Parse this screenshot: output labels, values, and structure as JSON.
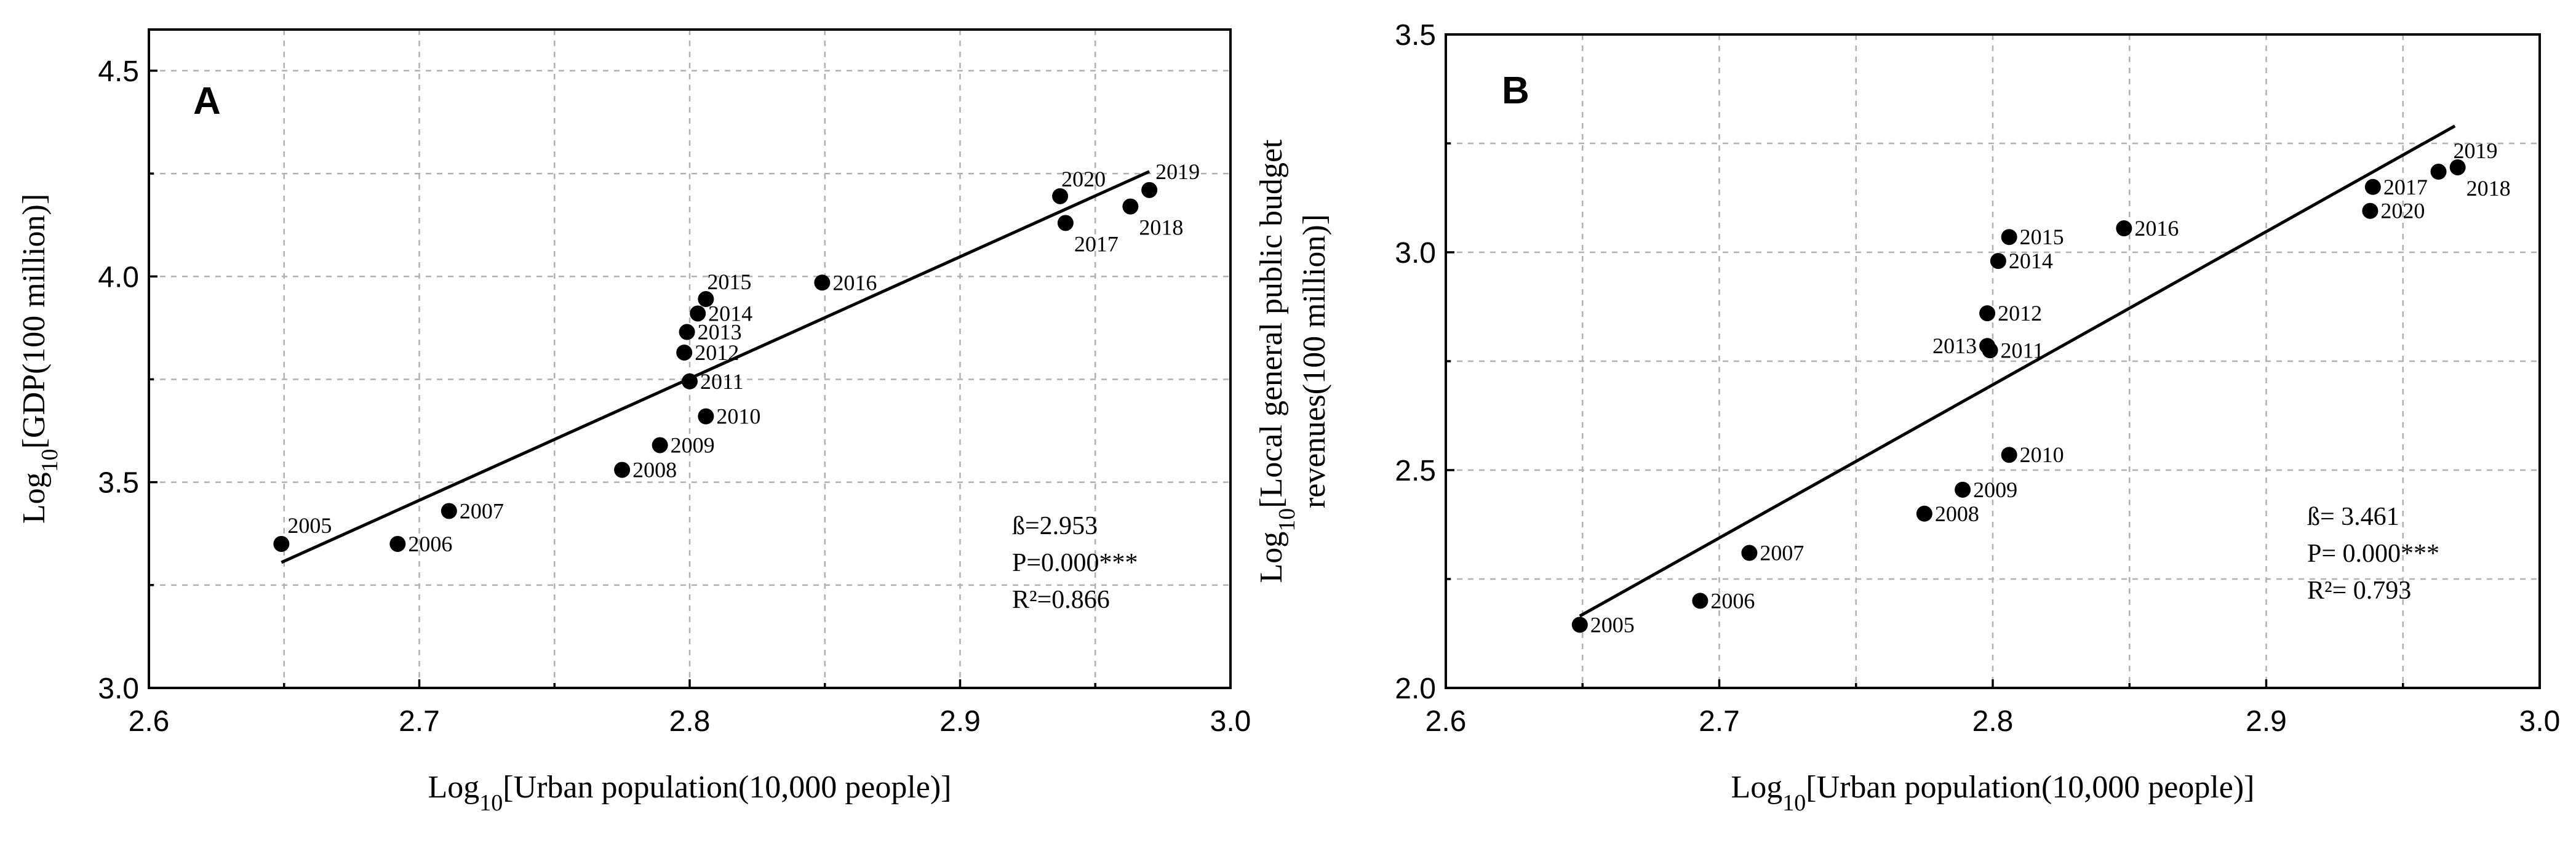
{
  "chart_data": [
    {
      "type": "scatter",
      "panel": "A",
      "xlabel": "Log10[Urban population(10,000 people)]",
      "xlabel_parts": {
        "prefix": "Log",
        "sub": "10",
        "rest": "[Urban population(10,000 people)]"
      },
      "ylabel": "Log10[GDP(100 million)]",
      "ylabel_lines": [
        {
          "prefix": "Log",
          "sub": "10",
          "rest": "[GDP(100 million)]"
        }
      ],
      "xlim": [
        2.6,
        3.0
      ],
      "ylim": [
        3.0,
        4.6
      ],
      "xticks": [
        2.6,
        2.7,
        2.8,
        2.9,
        3.0
      ],
      "xtick_labels": [
        "2.6",
        "2.7",
        "2.8",
        "2.9",
        "3.0"
      ],
      "yticks": [
        3.0,
        3.5,
        4.0,
        4.5
      ],
      "ytick_labels": [
        "3.0",
        "3.5",
        "4.0",
        "4.5"
      ],
      "x_minor_gridlines": [
        2.65,
        2.75,
        2.85,
        2.95
      ],
      "y_minor_gridlines": [
        3.25,
        3.75,
        4.25
      ],
      "grid": true,
      "points": [
        {
          "label": "2005",
          "x": 2.649,
          "y": 3.35,
          "label_pos": "above-right"
        },
        {
          "label": "2006",
          "x": 2.692,
          "y": 3.35,
          "label_pos": "right"
        },
        {
          "label": "2007",
          "x": 2.711,
          "y": 3.43,
          "label_pos": "right"
        },
        {
          "label": "2008",
          "x": 2.775,
          "y": 3.53,
          "label_pos": "right"
        },
        {
          "label": "2009",
          "x": 2.789,
          "y": 3.59,
          "label_pos": "right"
        },
        {
          "label": "2010",
          "x": 2.806,
          "y": 3.66,
          "label_pos": "right"
        },
        {
          "label": "2011",
          "x": 2.8,
          "y": 3.745,
          "label_pos": "right"
        },
        {
          "label": "2012",
          "x": 2.798,
          "y": 3.815,
          "label_pos": "right"
        },
        {
          "label": "2013",
          "x": 2.799,
          "y": 3.865,
          "label_pos": "right"
        },
        {
          "label": "2014",
          "x": 2.803,
          "y": 3.91,
          "label_pos": "right"
        },
        {
          "label": "2015",
          "x": 2.806,
          "y": 3.945,
          "label_pos": "above"
        },
        {
          "label": "2016",
          "x": 2.849,
          "y": 3.985,
          "label_pos": "right"
        },
        {
          "label": "2017",
          "x": 2.939,
          "y": 4.13,
          "label_pos": "below-right"
        },
        {
          "label": "2018",
          "x": 2.963,
          "y": 4.17,
          "label_pos": "below-right"
        },
        {
          "label": "2019",
          "x": 2.97,
          "y": 4.21,
          "label_pos": "above-right"
        },
        {
          "label": "2020",
          "x": 2.937,
          "y": 4.195,
          "label_pos": "above"
        }
      ],
      "fit_line": {
        "x": [
          2.649,
          2.97
        ],
        "y": [
          3.305,
          4.255
        ]
      },
      "stats": [
        "ß=2.953",
        "P=0.000***",
        "R²=0.866"
      ]
    },
    {
      "type": "scatter",
      "panel": "B",
      "xlabel": "Log10[Urban population(10,000 people)]",
      "xlabel_parts": {
        "prefix": "Log",
        "sub": "10",
        "rest": "[Urban population(10,000 people)]"
      },
      "ylabel": "Log10[Local general public budget revenues(100 million)]",
      "ylabel_lines": [
        {
          "prefix": "Log",
          "sub": "10",
          "rest": "[Local general public budget"
        },
        {
          "prefix": "",
          "sub": "",
          "rest": "revenues(100 million)]"
        }
      ],
      "xlim": [
        2.6,
        3.0
      ],
      "ylim": [
        2.0,
        3.5
      ],
      "xticks": [
        2.6,
        2.7,
        2.8,
        2.9,
        3.0
      ],
      "xtick_labels": [
        "2.6",
        "2.7",
        "2.8",
        "2.9",
        "3.0"
      ],
      "yticks": [
        2.0,
        2.5,
        3.0,
        3.5
      ],
      "ytick_labels": [
        "2.0",
        "2.5",
        "3.0",
        "3.5"
      ],
      "x_minor_gridlines": [
        2.65,
        2.75,
        2.85,
        2.95
      ],
      "y_minor_gridlines": [
        2.25,
        2.75,
        3.25
      ],
      "grid": true,
      "points": [
        {
          "label": "2005",
          "x": 2.649,
          "y": 2.145,
          "label_pos": "right"
        },
        {
          "label": "2006",
          "x": 2.693,
          "y": 2.2,
          "label_pos": "right"
        },
        {
          "label": "2007",
          "x": 2.711,
          "y": 2.31,
          "label_pos": "right"
        },
        {
          "label": "2008",
          "x": 2.775,
          "y": 2.4,
          "label_pos": "right"
        },
        {
          "label": "2009",
          "x": 2.789,
          "y": 2.455,
          "label_pos": "right"
        },
        {
          "label": "2010",
          "x": 2.806,
          "y": 2.535,
          "label_pos": "right"
        },
        {
          "label": "2011",
          "x": 2.799,
          "y": 2.775,
          "label_pos": "right"
        },
        {
          "label": "2012",
          "x": 2.798,
          "y": 2.86,
          "label_pos": "right"
        },
        {
          "label": "2013",
          "x": 2.798,
          "y": 2.785,
          "label_pos": "left"
        },
        {
          "label": "2014",
          "x": 2.802,
          "y": 2.98,
          "label_pos": "right"
        },
        {
          "label": "2015",
          "x": 2.806,
          "y": 3.035,
          "label_pos": "right"
        },
        {
          "label": "2016",
          "x": 2.848,
          "y": 3.055,
          "label_pos": "right"
        },
        {
          "label": "2017",
          "x": 2.939,
          "y": 3.15,
          "label_pos": "right"
        },
        {
          "label": "2018",
          "x": 2.97,
          "y": 3.195,
          "label_pos": "below-right"
        },
        {
          "label": "2019",
          "x": 2.963,
          "y": 3.185,
          "label_pos": "above-far-right"
        },
        {
          "label": "2020",
          "x": 2.938,
          "y": 3.095,
          "label_pos": "right"
        }
      ],
      "fit_line": {
        "x": [
          2.649,
          2.969
        ],
        "y": [
          2.165,
          3.29
        ]
      },
      "stats": [
        "ß= 3.461",
        "P= 0.000***",
        "R²= 0.793"
      ]
    }
  ]
}
